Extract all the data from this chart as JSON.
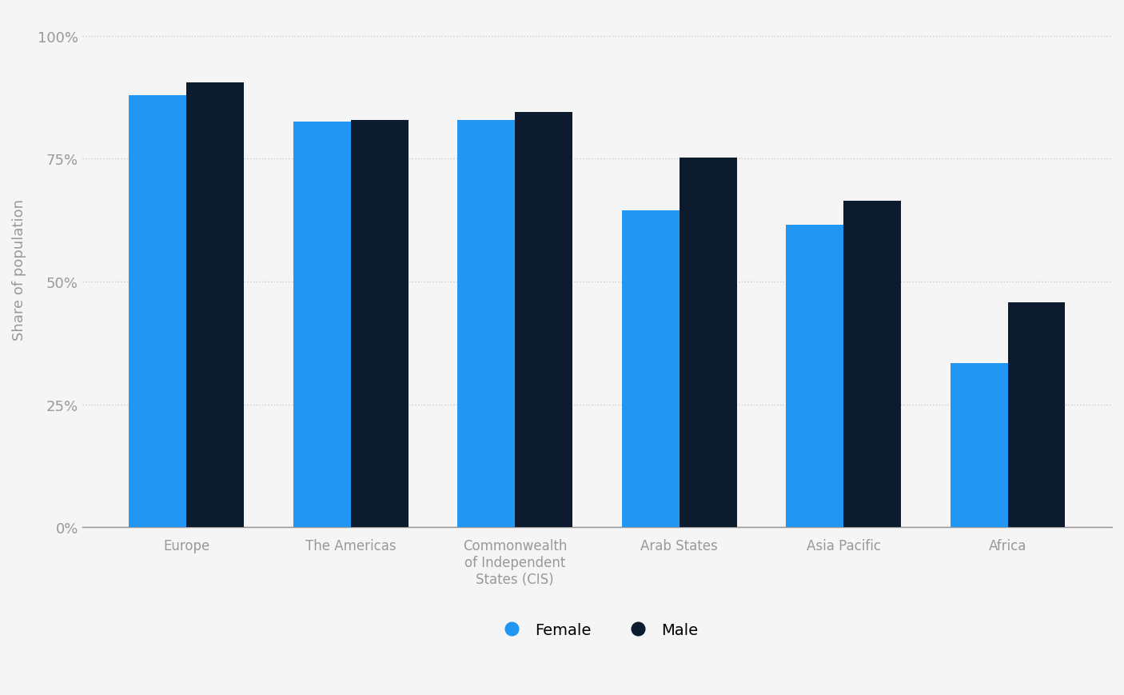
{
  "categories": [
    "Europe",
    "The Americas",
    "Commonwealth\nof Independent\nStates (CIS)",
    "Arab States",
    "Asia Pacific",
    "Africa"
  ],
  "female_values": [
    0.88,
    0.825,
    0.828,
    0.645,
    0.615,
    0.335
  ],
  "male_values": [
    0.905,
    0.828,
    0.845,
    0.752,
    0.665,
    0.458
  ],
  "female_color": "#2196F3",
  "male_color": "#0D1B2E",
  "background_color": "#f5f5f5",
  "ylabel": "Share of population",
  "yticks": [
    0,
    0.25,
    0.5,
    0.75,
    1.0
  ],
  "ytick_labels": [
    "0%",
    "25%",
    "50%",
    "75%",
    "100%"
  ],
  "legend_female": "Female",
  "legend_male": "Male",
  "bar_width": 0.35,
  "grid_color": "#cccccc",
  "axis_color": "#999999",
  "tick_color": "#999999",
  "ylabel_fontsize": 13,
  "tick_fontsize": 13,
  "legend_fontsize": 14,
  "xlabel_fontsize": 12
}
